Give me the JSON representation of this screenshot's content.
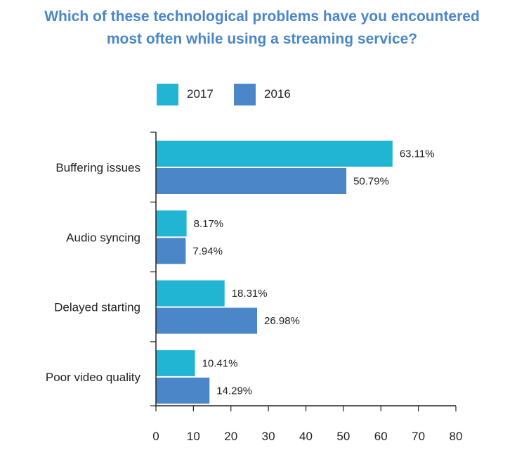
{
  "chart_data": {
    "type": "bar",
    "orientation": "horizontal",
    "title": "Which of these technological problems have you encountered most often while using a streaming service?",
    "title_lines": [
      "Which of these technological problems have you encountered",
      "most often while using a streaming service?"
    ],
    "categories": [
      "Buffering issues",
      "Audio syncing",
      "Delayed starting",
      "Poor video quality"
    ],
    "series": [
      {
        "name": "2017",
        "color": "#22b5d3",
        "values": [
          63.11,
          8.17,
          18.31,
          10.41
        ],
        "labels": [
          "63.11%",
          "8.17%",
          "18.31%",
          "10.41%"
        ]
      },
      {
        "name": "2016",
        "color": "#4a86c8",
        "values": [
          50.79,
          7.94,
          26.98,
          14.29
        ],
        "labels": [
          "50.79%",
          "7.94%",
          "26.98%",
          "14.29%"
        ]
      }
    ],
    "xlim": [
      0,
      80
    ],
    "xticks": [
      "0",
      "10",
      "20",
      "30",
      "40",
      "50",
      "60",
      "70",
      "80"
    ],
    "legend_position": "top-left",
    "grid": false
  }
}
